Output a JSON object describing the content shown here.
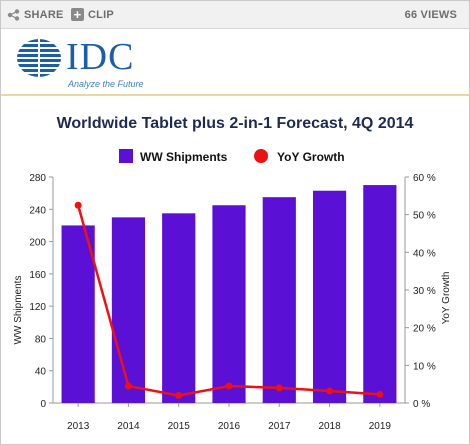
{
  "toolbar": {
    "share_label": "SHARE",
    "clip_label": "CLIP",
    "views_label": "66 VIEWS"
  },
  "brand": {
    "logo_text": "IDC",
    "tagline": "Analyze the Future",
    "color": "#1c5fa6"
  },
  "chart_data": {
    "type": "bar",
    "title": "Worldwide Tablet plus 2-in-1 Forecast, 4Q 2014",
    "categories": [
      "2013",
      "2014",
      "2015",
      "2016",
      "2017",
      "2018",
      "2019"
    ],
    "series": [
      {
        "name": "WW Shipments",
        "kind": "bar",
        "axis": "left",
        "color": "#5b10d6",
        "values": [
          220,
          230,
          235,
          245,
          255,
          263,
          270
        ]
      },
      {
        "name": "YoY Growth",
        "kind": "line",
        "axis": "right",
        "color": "#ee1111",
        "values": [
          52.5,
          4.5,
          2.0,
          4.5,
          4.0,
          3.2,
          2.3
        ]
      }
    ],
    "ylabel": "WW Shipments",
    "y2label": "YoY Growth",
    "ylim": [
      0,
      280
    ],
    "y2lim": [
      0,
      60
    ],
    "yticks": [
      "0",
      "40",
      "80",
      "120",
      "160",
      "200",
      "240",
      "280"
    ],
    "y2ticks": [
      "0 %",
      "10 %",
      "20 %",
      "30 %",
      "40 %",
      "50 %",
      "60 %"
    ],
    "legend": "top",
    "grid": false
  }
}
